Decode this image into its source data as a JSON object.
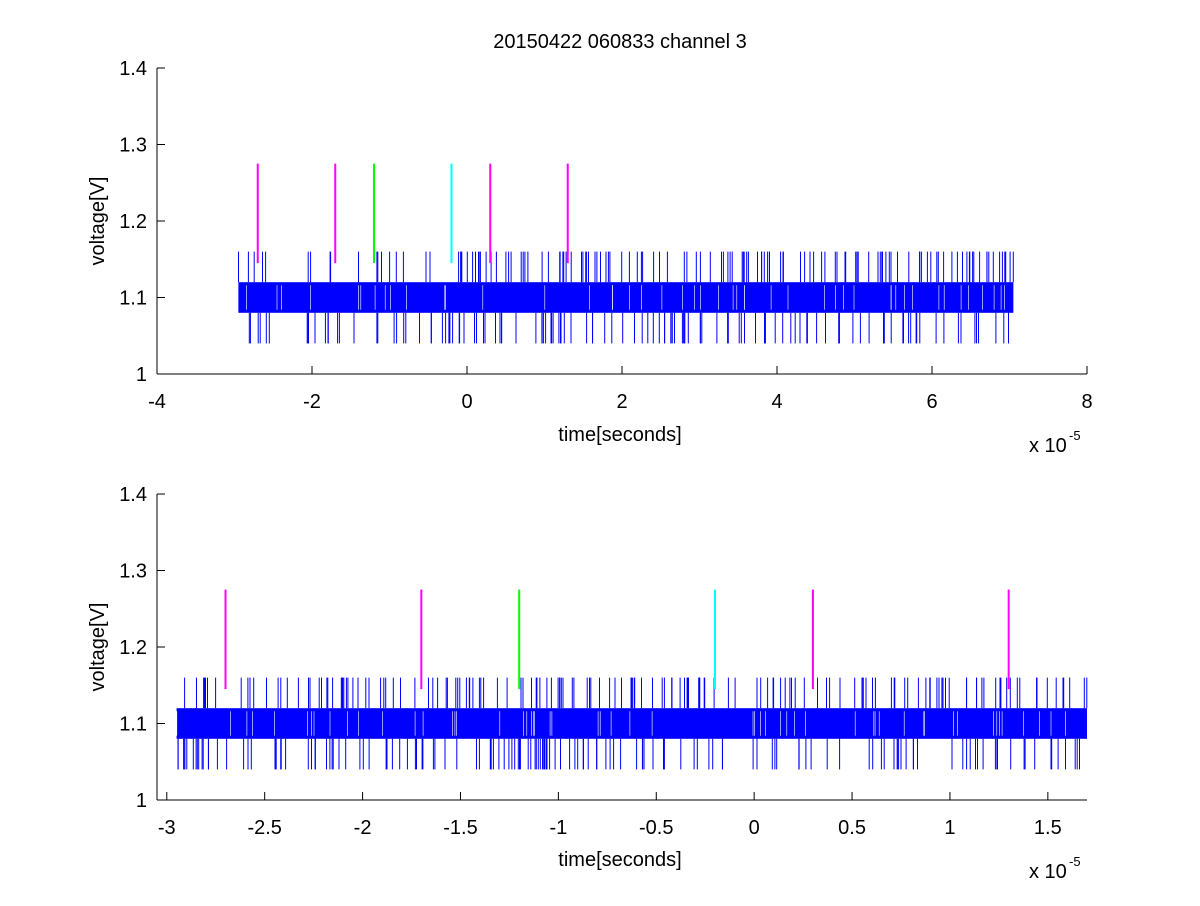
{
  "figure": {
    "title": "20150422 060833 channel 3"
  },
  "chart_data": [
    {
      "type": "line",
      "title": "20150422 060833 channel 3",
      "xlabel": "time[seconds]",
      "ylabel": "voltage[V]",
      "x_multiplier_label": "x 10",
      "x_multiplier_exponent": "-5",
      "xlim": [
        -4,
        8
      ],
      "ylim": [
        1,
        1.4
      ],
      "xticks": [
        -4,
        -2,
        0,
        2,
        4,
        6,
        8
      ],
      "xtick_labels": [
        "-4",
        "-2",
        "0",
        "2",
        "4",
        "6",
        "8"
      ],
      "yticks": [
        1,
        1.1,
        1.2,
        1.3,
        1.4
      ],
      "ytick_labels": [
        "1",
        "1.1",
        "1.2",
        "1.3",
        "1.4"
      ],
      "grid": false,
      "series": [
        {
          "kind": "noise_signal",
          "color": "#0000ff",
          "x_range": [
            -2.95,
            7.05
          ],
          "baseline_band": [
            1.08,
            1.12
          ],
          "spike_high": 1.16,
          "spike_low": 1.04
        }
      ],
      "markers": [
        {
          "x": -2.7,
          "y_range": [
            1.145,
            1.275
          ],
          "color": "#ff00ff"
        },
        {
          "x": -1.7,
          "y_range": [
            1.145,
            1.275
          ],
          "color": "#ff00ff"
        },
        {
          "x": -1.2,
          "y_range": [
            1.145,
            1.275
          ],
          "color": "#00ff00"
        },
        {
          "x": -0.2,
          "y_range": [
            1.145,
            1.275
          ],
          "color": "#00ffff"
        },
        {
          "x": 0.3,
          "y_range": [
            1.145,
            1.275
          ],
          "color": "#ff00ff"
        },
        {
          "x": 1.3,
          "y_range": [
            1.145,
            1.275
          ],
          "color": "#ff00ff"
        }
      ]
    },
    {
      "type": "line",
      "title": "",
      "xlabel": "time[seconds]",
      "ylabel": "voltage[V]",
      "x_multiplier_label": "x 10",
      "x_multiplier_exponent": "-5",
      "xlim": [
        -3.05,
        1.7
      ],
      "ylim": [
        1,
        1.4
      ],
      "xticks": [
        -3,
        -2.5,
        -2,
        -1.5,
        -1,
        -0.5,
        0,
        0.5,
        1,
        1.5
      ],
      "xtick_labels": [
        "-3",
        "-2.5",
        "-2",
        "-1.5",
        "-1",
        "-0.5",
        "0",
        "0.5",
        "1",
        "1.5"
      ],
      "yticks": [
        1,
        1.1,
        1.2,
        1.3,
        1.4
      ],
      "ytick_labels": [
        "1",
        "1.1",
        "1.2",
        "1.3",
        "1.4"
      ],
      "grid": false,
      "series": [
        {
          "kind": "noise_signal",
          "color": "#0000ff",
          "x_range": [
            -2.95,
            1.7
          ],
          "baseline_band": [
            1.08,
            1.12
          ],
          "spike_high": 1.16,
          "spike_low": 1.04
        }
      ],
      "markers": [
        {
          "x": -2.7,
          "y_range": [
            1.145,
            1.275
          ],
          "color": "#ff00ff"
        },
        {
          "x": -1.7,
          "y_range": [
            1.145,
            1.275
          ],
          "color": "#ff00ff"
        },
        {
          "x": -1.2,
          "y_range": [
            1.145,
            1.275
          ],
          "color": "#00ff00"
        },
        {
          "x": -0.2,
          "y_range": [
            1.145,
            1.275
          ],
          "color": "#00ffff"
        },
        {
          "x": 0.3,
          "y_range": [
            1.145,
            1.275
          ],
          "color": "#ff00ff"
        },
        {
          "x": 1.3,
          "y_range": [
            1.145,
            1.275
          ],
          "color": "#ff00ff"
        }
      ]
    }
  ]
}
